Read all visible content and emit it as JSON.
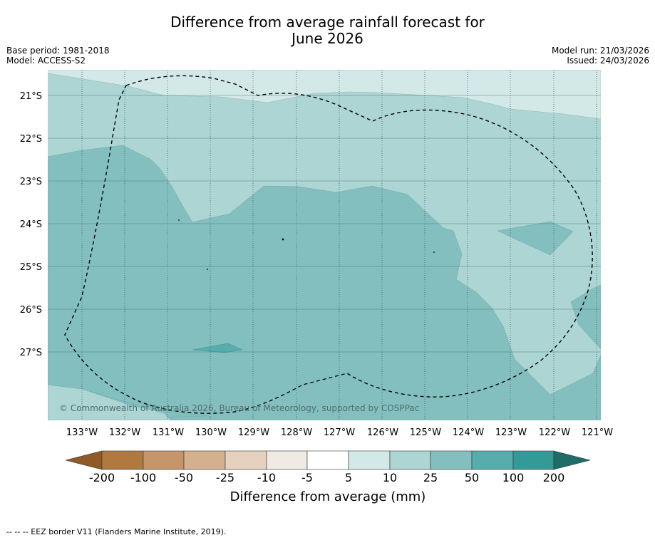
{
  "title": {
    "line1": "Difference from average rainfall forecast for",
    "line2": "June 2026"
  },
  "meta_left": {
    "base_period": "Base period: 1981-2018",
    "model": "Model: ACCESS-S2"
  },
  "meta_right": {
    "model_run": "Model run: 21/03/2026",
    "issued": "Issued: 24/03/2026"
  },
  "map": {
    "lat_labels": [
      "21°S",
      "22°S",
      "23°S",
      "24°S",
      "25°S",
      "26°S",
      "27°S"
    ],
    "lon_labels": [
      "133°W",
      "132°W",
      "131°W",
      "130°W",
      "129°W",
      "128°W",
      "127°W",
      "126°W",
      "125°W",
      "124°W",
      "123°W",
      "122°W",
      "121°W"
    ],
    "copyright": "© Commonwealth of Australia 2026, Bureau of Meteorology, supported by COSPPac",
    "colors": {
      "class_5_10": "#d3e9e8",
      "class_10_25": "#acd5d4",
      "class_25_50": "#84bfbf",
      "class_50_100": "#57acac"
    }
  },
  "colorbar": {
    "tick_labels": [
      "-200",
      "-100",
      "-50",
      "-25",
      "-10",
      "-5",
      "5",
      "10",
      "25",
      "50",
      "100",
      "200"
    ],
    "colors": [
      "#8f5a26",
      "#b07940",
      "#c6966a",
      "#d5b08e",
      "#e5d1bd",
      "#efeae4",
      "#ffffff",
      "#d3e9e8",
      "#acd5d4",
      "#84bfbf",
      "#57acac",
      "#339a97",
      "#1f6d69"
    ],
    "label": "Difference from average (mm)"
  },
  "footer": "--  --  -- EEZ border V11 (Flanders Marine Institute, 2019)."
}
